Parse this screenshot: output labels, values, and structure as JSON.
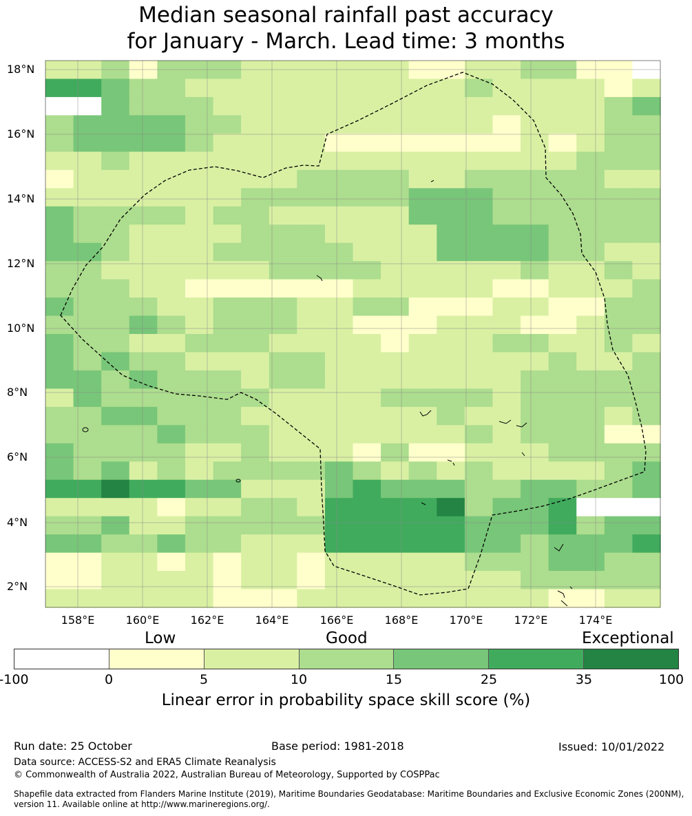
{
  "title_line1": "Median seasonal rainfall past accuracy",
  "title_line2": "for January - March. Lead time: 3 months",
  "map": {
    "lon_labels": [
      "158°E",
      "160°E",
      "162°E",
      "164°E",
      "166°E",
      "168°E",
      "170°E",
      "172°E",
      "174°E"
    ],
    "lat_labels": [
      "18°N",
      "16°N",
      "14°N",
      "12°N",
      "10°N",
      "8°N",
      "6°N",
      "4°N",
      "2°N"
    ],
    "grid_levels": [
      "2231333222222112233110",
      "5543322222222223222212",
      "0043332222222222222234",
      "3444433222222222122233",
      "3444432222111111121233",
      "2232222222222222222333",
      "1222222223333223333322",
      "2222222333333444333333",
      "4333323322222444333333",
      "4332222333222244443333",
      "4432223333322244443322",
      "3322222233332222232232",
      "3332211111122222112223",
      "4333223332233111221133",
      "3334323332211122211233",
      "4332233322221222332232",
      "4343322233222222223223",
      "4434333233222222233333",
      "2433333322223333233333",
      "3344333222222232233323",
      "3333433322222223233311",
      "4333322322213112223333",
      "4342323333432323222234",
      "5565544222454443344334",
      "2222122332555563445000",
      "3342233333555554445344",
      "4433433222555554434445",
      "1122121221222223334433",
      "1122221221222222233333",
      "2222221112222222221122"
    ],
    "colors": [
      "#ffffff",
      "#ffffcc",
      "#d9f0a3",
      "#addd8e",
      "#78c679",
      "#41ab5d",
      "#238443"
    ]
  },
  "colorbar": {
    "categories": [
      "Low",
      "Good",
      "Exceptional"
    ],
    "ticks": [
      "-100",
      "0",
      "5",
      "10",
      "15",
      "25",
      "35",
      "100"
    ],
    "colors": [
      "#ffffff",
      "#ffffcc",
      "#d9f0a3",
      "#addd8e",
      "#78c679",
      "#41ab5d",
      "#238443"
    ],
    "label": "Linear error in probability space skill score (%)"
  },
  "footer": {
    "run_date": "Run date: 25 October",
    "base_period": "Base period: 1981-2018",
    "issued": "Issued: 10/01/2022",
    "data_source": "Data source: ACCESS-S2 and ERA5 Climate Reanalysis",
    "copyright": "© Commonwealth of Australia 2022, Australian Bureau of Meteorology, Supported by COSPPac",
    "shapefile_1": "Shapefile data extracted from Flanders Marine Institute (2019), Maritime Boundaries Geodatabase: Maritime Boundaries and Exclusive Economic Zones (200NM),",
    "shapefile_2": "version 11. Available online at http://www.marineregions.org/."
  }
}
